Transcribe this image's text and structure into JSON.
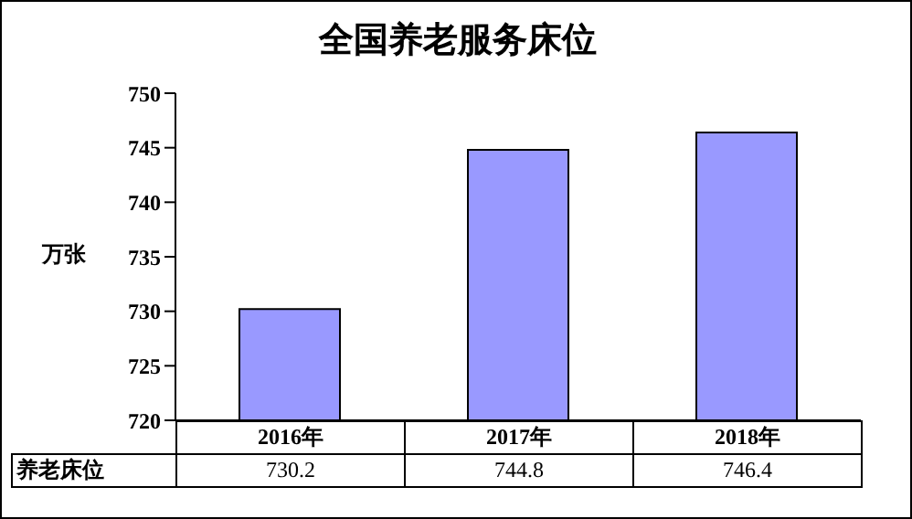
{
  "chart_data": {
    "type": "bar",
    "title": "全国养老服务床位",
    "ylabel": "万张",
    "categories": [
      "2016年",
      "2017年",
      "2018年"
    ],
    "series": [
      {
        "name": "养老床位",
        "color": "#9999ff",
        "values": [
          730.2,
          744.8,
          746.4
        ]
      }
    ],
    "ylim": [
      720,
      750
    ],
    "yticks": [
      720,
      725,
      730,
      735,
      740,
      745,
      750
    ],
    "grid": false,
    "data_labels": true
  }
}
